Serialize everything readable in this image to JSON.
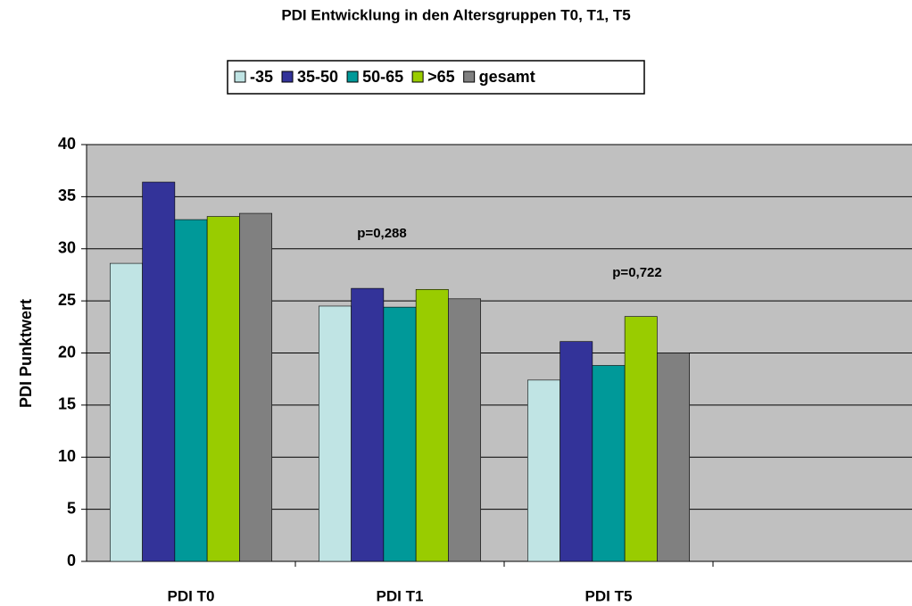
{
  "chart_data": {
    "type": "bar",
    "title": "PDI Entwicklung in den Altersgruppen T0, T1, T5",
    "y_label": "PDI Punktwert",
    "categories": [
      "PDI T0",
      "PDI T1",
      "PDI T5",
      null
    ],
    "series": [
      {
        "name": "-35",
        "color": "#c0e4e4",
        "values": [
          28.6,
          24.5,
          17.4,
          null
        ]
      },
      {
        "name": "35-50",
        "color": "#333399",
        "values": [
          36.4,
          26.2,
          21.1,
          null
        ]
      },
      {
        "name": "50-65",
        "color": "#009999",
        "values": [
          32.8,
          24.4,
          18.8,
          null
        ]
      },
      {
        "name": ">65",
        "color": "#99cc00",
        "values": [
          33.1,
          26.1,
          23.5,
          null
        ]
      },
      {
        "name": "gesamt",
        "color": "#808080",
        "values": [
          33.4,
          25.2,
          20.0,
          null
        ]
      }
    ],
    "annotations": [
      "p=0,288",
      "p=0,722"
    ],
    "ylim": [
      0,
      40
    ],
    "yticks": [
      0,
      5,
      10,
      15,
      20,
      25,
      30,
      35,
      40
    ],
    "grid": true,
    "legend": "top",
    "plot_background": "#c0c0c0"
  }
}
